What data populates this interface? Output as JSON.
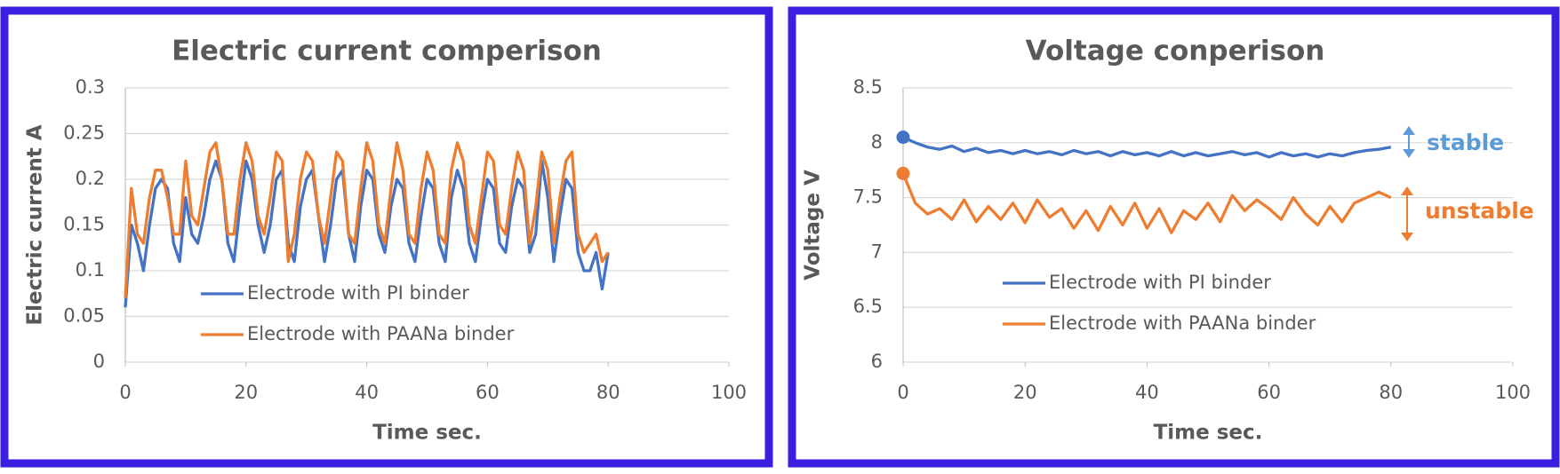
{
  "chart_data": [
    {
      "type": "line",
      "title": "Electric current comperison",
      "x_label": "Time sec.",
      "y_label": "Electric current A",
      "x": [
        0,
        1,
        2,
        3,
        4,
        5,
        6,
        7,
        8,
        9,
        10,
        11,
        12,
        13,
        14,
        15,
        16,
        17,
        18,
        19,
        20,
        21,
        22,
        23,
        24,
        25,
        26,
        27,
        28,
        29,
        30,
        31,
        32,
        33,
        34,
        35,
        36,
        37,
        38,
        39,
        40,
        41,
        42,
        43,
        44,
        45,
        46,
        47,
        48,
        49,
        50,
        51,
        52,
        53,
        54,
        55,
        56,
        57,
        58,
        59,
        60,
        61,
        62,
        63,
        64,
        65,
        66,
        67,
        68,
        69,
        70,
        71,
        72,
        73,
        74,
        75,
        76,
        77,
        78,
        79,
        80
      ],
      "series": [
        {
          "name": "Electrode with PI binder",
          "color": "#4472c4",
          "values": [
            0.06,
            0.15,
            0.13,
            0.1,
            0.15,
            0.19,
            0.2,
            0.19,
            0.13,
            0.11,
            0.18,
            0.14,
            0.13,
            0.16,
            0.2,
            0.22,
            0.2,
            0.13,
            0.11,
            0.17,
            0.22,
            0.2,
            0.15,
            0.12,
            0.15,
            0.2,
            0.21,
            0.13,
            0.11,
            0.17,
            0.2,
            0.21,
            0.16,
            0.11,
            0.15,
            0.2,
            0.21,
            0.14,
            0.11,
            0.17,
            0.21,
            0.2,
            0.14,
            0.12,
            0.17,
            0.2,
            0.19,
            0.13,
            0.11,
            0.16,
            0.2,
            0.19,
            0.13,
            0.11,
            0.18,
            0.21,
            0.19,
            0.13,
            0.11,
            0.16,
            0.2,
            0.19,
            0.13,
            0.12,
            0.17,
            0.2,
            0.19,
            0.12,
            0.14,
            0.22,
            0.18,
            0.11,
            0.16,
            0.2,
            0.19,
            0.12,
            0.1,
            0.1,
            0.12,
            0.08,
            0.12
          ]
        },
        {
          "name": "Electrode with PAANa binder",
          "color": "#ed7d31",
          "values": [
            0.07,
            0.19,
            0.14,
            0.13,
            0.18,
            0.21,
            0.21,
            0.18,
            0.14,
            0.14,
            0.22,
            0.16,
            0.15,
            0.19,
            0.23,
            0.24,
            0.2,
            0.14,
            0.14,
            0.2,
            0.24,
            0.22,
            0.16,
            0.14,
            0.18,
            0.23,
            0.22,
            0.11,
            0.14,
            0.2,
            0.23,
            0.22,
            0.16,
            0.13,
            0.18,
            0.23,
            0.22,
            0.14,
            0.13,
            0.19,
            0.24,
            0.22,
            0.15,
            0.13,
            0.19,
            0.24,
            0.21,
            0.14,
            0.13,
            0.19,
            0.23,
            0.21,
            0.14,
            0.13,
            0.21,
            0.24,
            0.22,
            0.15,
            0.13,
            0.18,
            0.23,
            0.22,
            0.15,
            0.14,
            0.19,
            0.23,
            0.21,
            0.13,
            0.17,
            0.23,
            0.21,
            0.13,
            0.18,
            0.22,
            0.23,
            0.14,
            0.12,
            0.13,
            0.14,
            0.11,
            0.12
          ]
        }
      ],
      "xlim": [
        0,
        100
      ],
      "xticks": [
        0,
        20,
        40,
        60,
        80,
        100
      ],
      "ylim": [
        0,
        0.3
      ],
      "yticks": [
        0,
        0.05,
        0.1,
        0.15,
        0.2,
        0.25,
        0.3
      ],
      "grid": true
    },
    {
      "type": "line",
      "title": "Voltage conperison",
      "x_label": "Time sec.",
      "y_label": "Voltage V",
      "x": [
        0,
        2,
        4,
        6,
        8,
        10,
        12,
        14,
        16,
        18,
        20,
        22,
        24,
        26,
        28,
        30,
        32,
        34,
        36,
        38,
        40,
        42,
        44,
        46,
        48,
        50,
        52,
        54,
        56,
        58,
        60,
        62,
        64,
        66,
        68,
        70,
        72,
        74,
        76,
        78,
        80
      ],
      "series": [
        {
          "name": "Electrode with PI binder",
          "color": "#4472c4",
          "start_marker": true,
          "values": [
            8.05,
            8.0,
            7.96,
            7.94,
            7.97,
            7.92,
            7.95,
            7.91,
            7.93,
            7.9,
            7.93,
            7.9,
            7.92,
            7.89,
            7.93,
            7.9,
            7.92,
            7.88,
            7.92,
            7.89,
            7.91,
            7.88,
            7.92,
            7.88,
            7.91,
            7.88,
            7.9,
            7.92,
            7.89,
            7.91,
            7.87,
            7.91,
            7.88,
            7.9,
            7.87,
            7.9,
            7.88,
            7.91,
            7.93,
            7.94,
            7.96
          ]
        },
        {
          "name": "Electrode with PAANa binder",
          "color": "#ed7d31",
          "start_marker": true,
          "values": [
            7.72,
            7.45,
            7.35,
            7.4,
            7.3,
            7.48,
            7.28,
            7.42,
            7.3,
            7.45,
            7.27,
            7.48,
            7.32,
            7.4,
            7.22,
            7.38,
            7.2,
            7.42,
            7.25,
            7.45,
            7.22,
            7.4,
            7.18,
            7.38,
            7.3,
            7.45,
            7.28,
            7.52,
            7.38,
            7.48,
            7.4,
            7.3,
            7.5,
            7.35,
            7.25,
            7.42,
            7.28,
            7.45,
            7.5,
            7.55,
            7.5
          ]
        }
      ],
      "annotations": [
        {
          "text": "stable",
          "color": "#5b9bd5"
        },
        {
          "text": "unstable",
          "color": "#ed7d31"
        }
      ],
      "xlim": [
        0,
        100
      ],
      "xticks": [
        0,
        20,
        40,
        60,
        80,
        100
      ],
      "ylim": [
        6,
        8.5
      ],
      "yticks": [
        6,
        6.5,
        7,
        7.5,
        8,
        8.5
      ],
      "grid": true
    }
  ]
}
